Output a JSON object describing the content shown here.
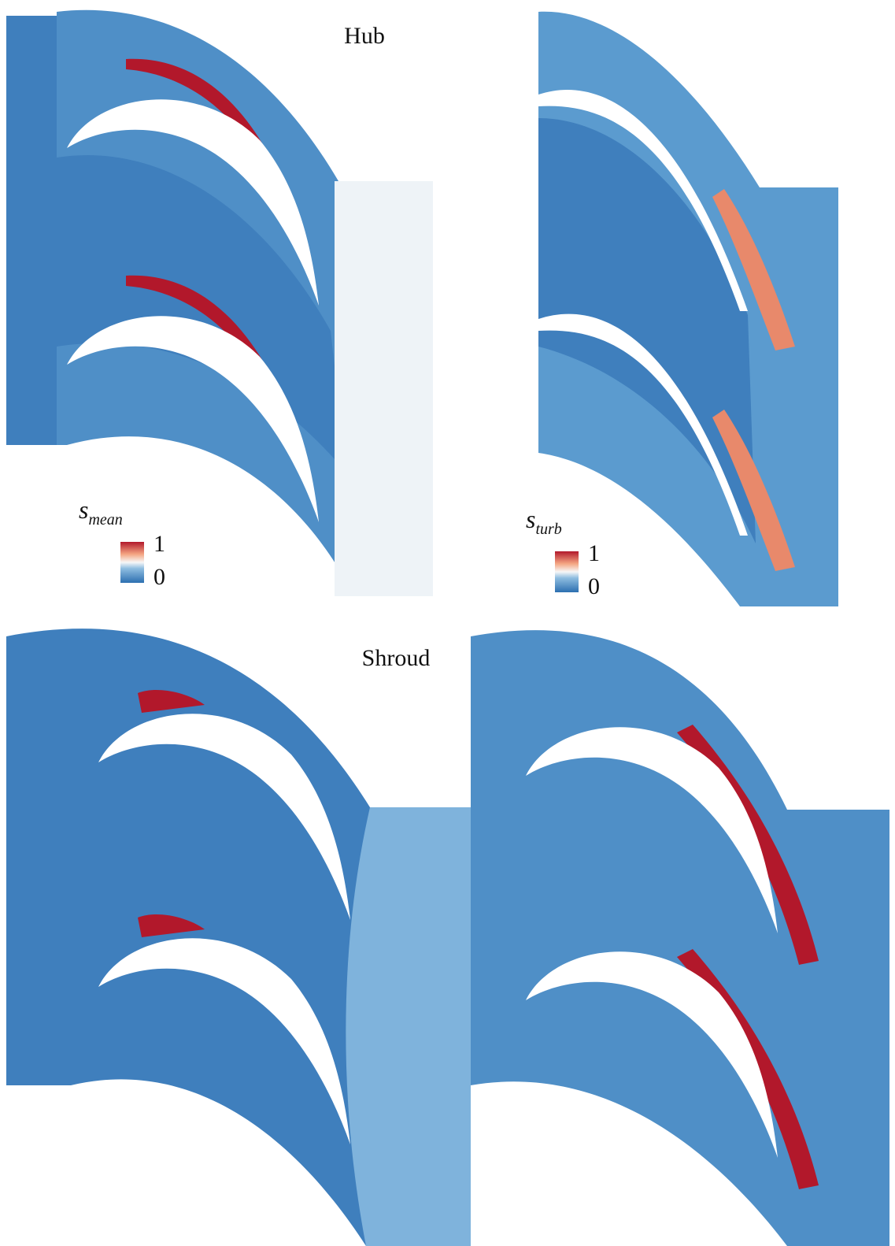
{
  "panels": [
    {
      "label": "Hub"
    },
    {
      "label": "Shroud"
    }
  ],
  "colorbars": [
    {
      "symbol": "s",
      "subscript": "mean",
      "max": 1,
      "min": 0
    },
    {
      "symbol": "s",
      "subscript": "turb",
      "max": 1,
      "min": 0
    }
  ]
}
